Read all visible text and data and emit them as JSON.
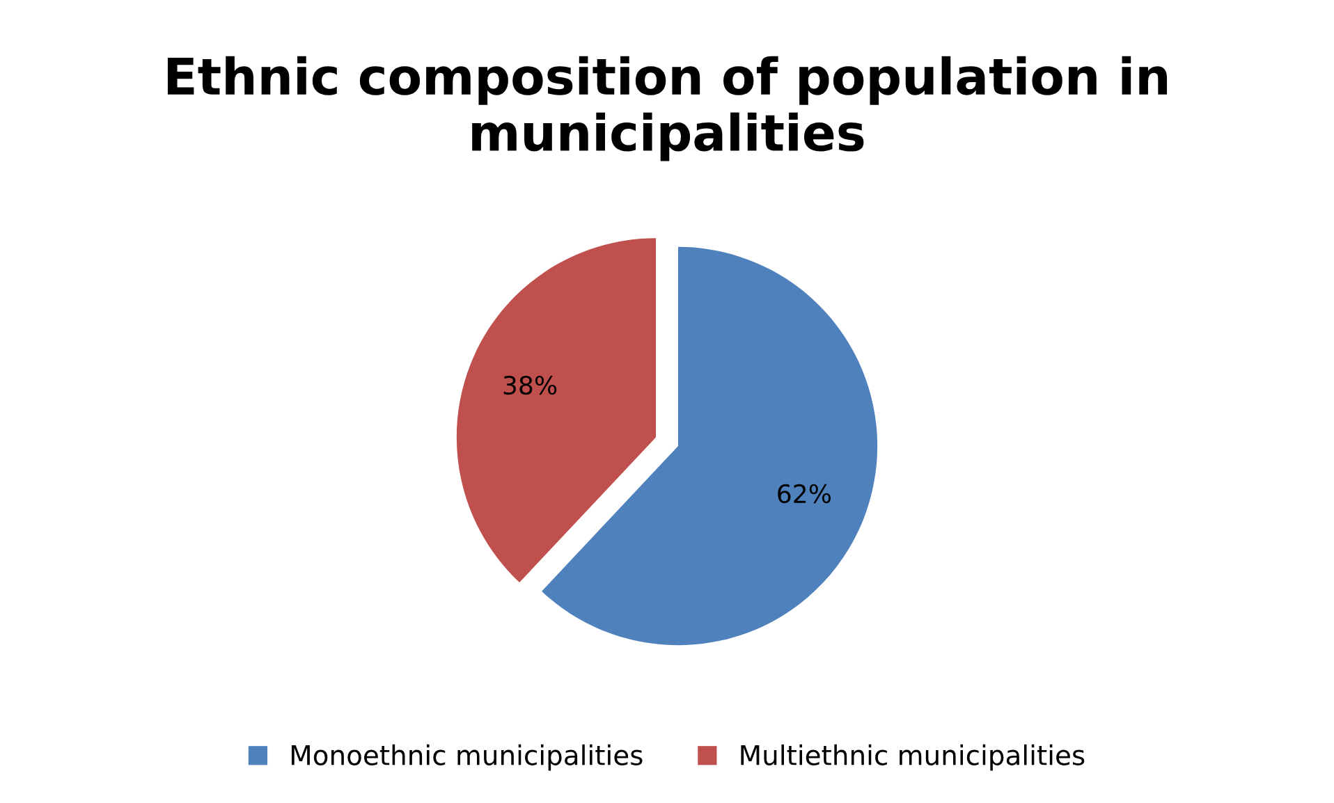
{
  "chart_data": {
    "type": "pie",
    "title": "Ethnic composition of population in municipalities",
    "categories": [
      "Monoethnic municipalities",
      "Multiethnic municipalities"
    ],
    "values": [
      62,
      38
    ],
    "colors": [
      "#4f81bd",
      "#c0504d"
    ],
    "value_labels": [
      "62%",
      "38%"
    ],
    "legend": "bottom"
  }
}
